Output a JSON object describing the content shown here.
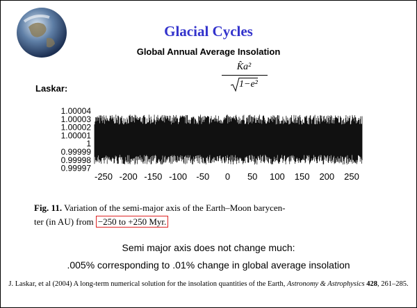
{
  "title": "Glacial Cycles",
  "subtitle": "Global Annual Average Insolation",
  "formula": {
    "numerator": "K̂a²",
    "denominator": "1−e²"
  },
  "label": "Laskar:",
  "figure": {
    "y_tick_labels": [
      "1.00004",
      "1.00003",
      "1.00002",
      "1.00001",
      "1",
      "0.99999",
      "0.99998",
      "0.99997"
    ],
    "x_tick_labels": [
      "-250",
      "-200",
      "-150",
      "-100",
      "-50",
      "0",
      "50",
      "100",
      "150",
      "200",
      "250"
    ],
    "caption": {
      "number": "Fig. 11.",
      "text": " Variation of the semi-major axis of the Earth–Moon barycen-",
      "text2": "ter (in AU) from ",
      "boxed": "−250 to +250 Myr."
    }
  },
  "notes": [
    "Semi major axis does not change much:",
    ".005% corresponding to .01% change in global average insolation"
  ],
  "citation": {
    "text": "J. Laskar, et al (2004) A long-term numerical solution for the insolation quantities of the Earth, ",
    "journal": "Astronomy & Astrophysics",
    "volume": "428",
    "pages": ", 261–285."
  }
}
